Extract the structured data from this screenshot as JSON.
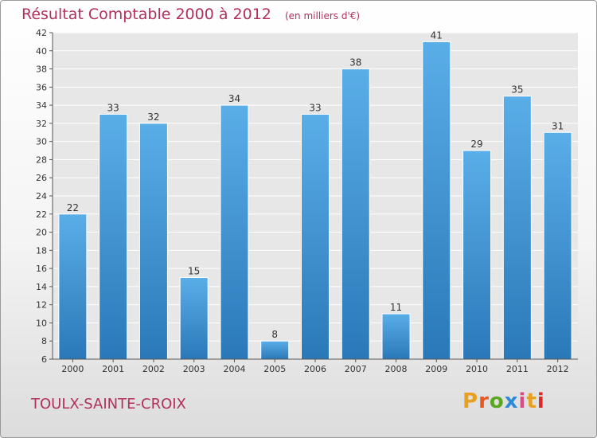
{
  "header": {
    "title": "Résultat Comptable 2000 à 2012",
    "unit": "(en milliers d'€)"
  },
  "footer": {
    "commune": "TOULX-SAINTE-CROIX",
    "brand": "Proxiti"
  },
  "colors": {
    "title": "#b0305a",
    "bar_light": "#5aaee8",
    "bar_dark": "#2a78b8",
    "brand_letters": [
      "#e8a020",
      "#e45a20",
      "#5aa820",
      "#2a8ad8",
      "#d84a8a",
      "#e8a020",
      "#d82a2a"
    ]
  },
  "chart_data": {
    "type": "bar",
    "title": "Résultat Comptable 2000 à 2012",
    "subtitle": "(en milliers d'€)",
    "categories": [
      "2000",
      "2001",
      "2002",
      "2003",
      "2004",
      "2005",
      "2006",
      "2007",
      "2008",
      "2009",
      "2010",
      "2011",
      "2012"
    ],
    "values": [
      22,
      33,
      32,
      15,
      34,
      8,
      33,
      38,
      11,
      41,
      29,
      35,
      31
    ],
    "ylim": [
      6,
      42
    ],
    "yticks": [
      6,
      8,
      10,
      12,
      14,
      16,
      18,
      20,
      22,
      24,
      26,
      28,
      30,
      32,
      34,
      36,
      38,
      40,
      42
    ],
    "grid": true,
    "data_labels": true
  }
}
